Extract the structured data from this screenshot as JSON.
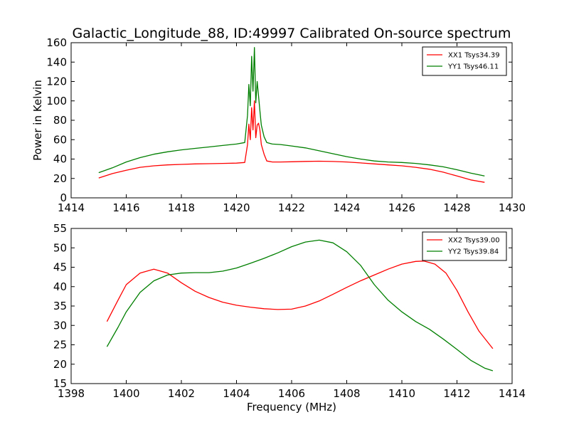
{
  "figure": {
    "title": "Galactic_Longitude_88, ID:49997 Calibrated On-source spectrum",
    "xlabel": "Frequency (MHz)",
    "colors": {
      "red": "#ff0000",
      "green": "#007f00",
      "axes": "#000000",
      "background": "#ffffff"
    }
  },
  "chart_data": [
    {
      "type": "line",
      "xlim": [
        1414,
        1430
      ],
      "ylim": [
        0,
        160
      ],
      "xticks": [
        1414,
        1416,
        1418,
        1420,
        1422,
        1424,
        1426,
        1428,
        1430
      ],
      "yticks": [
        0,
        20,
        40,
        60,
        80,
        100,
        120,
        140,
        160
      ],
      "xlabel": "",
      "ylabel": "Power in Kelvin",
      "grid": false,
      "legend_position": "top-right",
      "series": [
        {
          "name": "XX1 Tsys34.39",
          "color": "#ff0000",
          "x": [
            1415.0,
            1415.5,
            1416.0,
            1416.5,
            1417.0,
            1417.5,
            1418.0,
            1418.5,
            1419.0,
            1419.5,
            1420.0,
            1420.3,
            1420.4,
            1420.45,
            1420.5,
            1420.55,
            1420.6,
            1420.65,
            1420.7,
            1420.75,
            1420.8,
            1420.85,
            1420.9,
            1421.0,
            1421.1,
            1421.3,
            1421.6,
            1422.0,
            1422.5,
            1423.0,
            1423.5,
            1424.0,
            1424.5,
            1425.0,
            1425.5,
            1426.0,
            1426.5,
            1427.0,
            1427.5,
            1428.0,
            1428.5,
            1429.0
          ],
          "y": [
            20.5,
            25.0,
            28.5,
            31.5,
            33.0,
            34.0,
            34.5,
            35.0,
            35.2,
            35.5,
            35.8,
            36.5,
            55,
            76,
            60,
            93,
            70,
            100,
            62,
            75,
            77,
            70,
            55,
            45,
            38,
            37,
            37,
            37.2,
            37.6,
            37.8,
            37.5,
            37.0,
            36.0,
            35.0,
            34.0,
            33.0,
            31.5,
            29.5,
            26.5,
            22.5,
            18.5,
            16.0
          ]
        },
        {
          "name": "YY1 Tsys46.11",
          "color": "#007f00",
          "x": [
            1415.0,
            1415.5,
            1416.0,
            1416.5,
            1417.0,
            1417.5,
            1418.0,
            1418.5,
            1419.0,
            1419.5,
            1420.0,
            1420.3,
            1420.4,
            1420.45,
            1420.5,
            1420.55,
            1420.6,
            1420.65,
            1420.7,
            1420.75,
            1420.8,
            1420.85,
            1420.9,
            1421.0,
            1421.1,
            1421.3,
            1421.6,
            1422.0,
            1422.5,
            1423.0,
            1423.5,
            1424.0,
            1424.5,
            1425.0,
            1425.5,
            1426.0,
            1426.5,
            1427.0,
            1427.5,
            1428.0,
            1428.5,
            1429.0
          ],
          "y": [
            26.0,
            31.0,
            37.0,
            41.5,
            45.0,
            47.5,
            49.5,
            51.0,
            52.5,
            54.0,
            55.5,
            57,
            85,
            117,
            95,
            146,
            110,
            155,
            98,
            120,
            105,
            90,
            75,
            63,
            57,
            55.5,
            55,
            53.5,
            51.5,
            48.5,
            45.5,
            42.5,
            40.0,
            38.0,
            37.0,
            36.5,
            35.5,
            34.0,
            32.0,
            29.0,
            25.5,
            22.5
          ]
        }
      ]
    },
    {
      "type": "line",
      "xlim": [
        1398,
        1414
      ],
      "ylim": [
        15,
        55
      ],
      "xticks": [
        1398,
        1400,
        1402,
        1404,
        1406,
        1408,
        1410,
        1412,
        1414
      ],
      "yticks": [
        15,
        20,
        25,
        30,
        35,
        40,
        45,
        50,
        55
      ],
      "xlabel": "Frequency (MHz)",
      "ylabel": "",
      "grid": false,
      "legend_position": "top-right",
      "series": [
        {
          "name": "XX2 Tsys39.00",
          "color": "#ff0000",
          "x": [
            1399.3,
            1399.7,
            1400.0,
            1400.5,
            1401.0,
            1401.5,
            1402.0,
            1402.5,
            1403.0,
            1403.5,
            1404.0,
            1404.5,
            1405.0,
            1405.5,
            1406.0,
            1406.5,
            1407.0,
            1407.5,
            1408.0,
            1408.5,
            1409.0,
            1409.5,
            1410.0,
            1410.5,
            1410.8,
            1411.2,
            1411.6,
            1412.0,
            1412.4,
            1412.8,
            1413.3
          ],
          "y": [
            31.0,
            36.5,
            40.5,
            43.5,
            44.5,
            43.5,
            41.0,
            38.8,
            37.2,
            36.0,
            35.2,
            34.7,
            34.3,
            34.1,
            34.2,
            35.0,
            36.3,
            38.0,
            39.8,
            41.5,
            43.0,
            44.5,
            45.8,
            46.5,
            46.6,
            45.8,
            43.5,
            39.0,
            33.5,
            28.5,
            24.0
          ]
        },
        {
          "name": "YY2 Tsys39.84",
          "color": "#007f00",
          "x": [
            1399.3,
            1399.7,
            1400.0,
            1400.5,
            1401.0,
            1401.5,
            1402.0,
            1402.5,
            1403.0,
            1403.5,
            1404.0,
            1404.5,
            1405.0,
            1405.5,
            1406.0,
            1406.5,
            1407.0,
            1407.5,
            1408.0,
            1408.5,
            1409.0,
            1409.5,
            1410.0,
            1410.5,
            1411.0,
            1411.5,
            1412.0,
            1412.5,
            1413.0,
            1413.3
          ],
          "y": [
            24.5,
            29.5,
            33.5,
            38.5,
            41.5,
            43.0,
            43.5,
            43.6,
            43.6,
            44.0,
            44.8,
            46.0,
            47.3,
            48.7,
            50.3,
            51.5,
            52.0,
            51.3,
            49.0,
            45.5,
            40.5,
            36.5,
            33.5,
            31.0,
            29.0,
            26.5,
            23.8,
            21.0,
            19.0,
            18.3
          ]
        }
      ]
    }
  ]
}
